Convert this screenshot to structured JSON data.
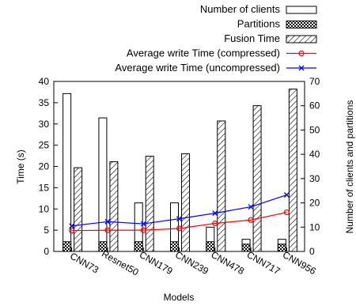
{
  "chart_data": {
    "type": "bar",
    "categories": [
      "CNN73",
      "Resnet50",
      "CNN179",
      "CNN239",
      "CNN478",
      "CNN717",
      "CNN956"
    ],
    "xlabel": "Models",
    "ylabel": "Time (s)",
    "y2label": "Number of clients and partitions",
    "ylim": [
      0,
      40
    ],
    "y2lim": [
      0,
      70
    ],
    "yticks": [
      0,
      5,
      10,
      15,
      20,
      25,
      30,
      35,
      40
    ],
    "y2ticks": [
      0,
      10,
      20,
      30,
      40,
      50,
      60,
      70
    ],
    "legend_position": "top-right",
    "grid": false,
    "series": [
      {
        "name": "Number of clients",
        "kind": "bar",
        "axis": "right",
        "pattern": "none",
        "values": [
          65,
          55,
          20,
          20,
          10,
          5,
          5
        ]
      },
      {
        "name": "Partitions",
        "kind": "bar",
        "axis": "right",
        "pattern": "checker",
        "values": [
          4,
          4,
          4,
          4,
          4,
          3,
          3
        ]
      },
      {
        "name": "Fusion Time",
        "kind": "bar",
        "axis": "left",
        "pattern": "diagonal",
        "values": [
          19.7,
          21.1,
          22.4,
          23.0,
          30.7,
          34.3,
          38.2
        ]
      },
      {
        "name": "Average write Time (compressed)",
        "kind": "line",
        "axis": "left",
        "marker": "circle",
        "color": "#ff0000",
        "values": [
          4.9,
          5.0,
          5.0,
          5.4,
          6.6,
          7.4,
          9.2
        ]
      },
      {
        "name": "Average write Time (uncompressed)",
        "kind": "line",
        "axis": "left",
        "marker": "x",
        "color": "#0000ff",
        "values": [
          6.0,
          7.0,
          6.5,
          7.7,
          9.0,
          10.5,
          13.3
        ]
      }
    ]
  }
}
